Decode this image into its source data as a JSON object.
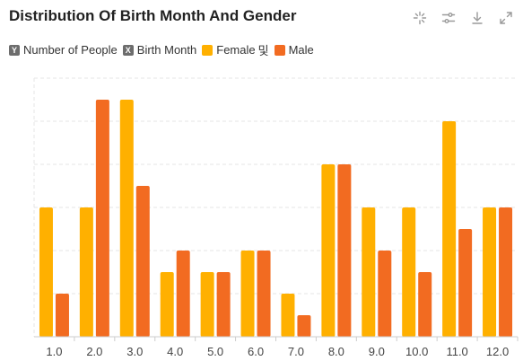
{
  "header": {
    "title": "Distribution Of Birth Month And Gender"
  },
  "toolbar": {
    "icons": [
      "sparkle-icon",
      "sliders-icon",
      "download-icon",
      "expand-icon"
    ]
  },
  "legend": {
    "y_field_tag": "Y",
    "y_field": "Number of People",
    "x_field_tag": "X",
    "x_field": "Birth Month",
    "female": "Female",
    "female_suffix": "및",
    "male": "Male"
  },
  "colors": {
    "female": "#FFB000",
    "male": "#F26B21",
    "grid": "#e6e6e6",
    "axis": "#cccccc"
  },
  "chart_data": {
    "type": "bar",
    "title": "Distribution Of Birth Month And Gender",
    "xlabel": "Birth Month",
    "ylabel": "Number of People",
    "categories": [
      "1.0",
      "2.0",
      "3.0",
      "4.0",
      "5.0",
      "6.0",
      "7.0",
      "8.0",
      "9.0",
      "10.0",
      "11.0",
      "12.0"
    ],
    "series": [
      {
        "name": "Female",
        "values": [
          6,
          6,
          11,
          3,
          3,
          4,
          2,
          8,
          6,
          6,
          10,
          6
        ]
      },
      {
        "name": "Male",
        "values": [
          2,
          11,
          7,
          4,
          3,
          4,
          1,
          8,
          4,
          3,
          5,
          6
        ]
      }
    ],
    "ylim": [
      0,
      12
    ],
    "yticks_shown": false,
    "grid": "horizontal-dashed",
    "legend_position": "top-left"
  }
}
